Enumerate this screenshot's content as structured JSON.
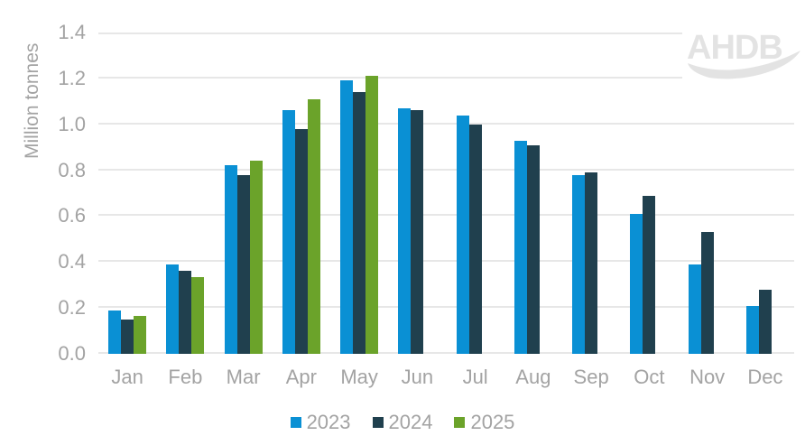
{
  "chart_data": {
    "type": "bar",
    "title": "",
    "xlabel": "",
    "ylabel": "Million tonnes",
    "categories": [
      "Jan",
      "Feb",
      "Mar",
      "Apr",
      "May",
      "Jun",
      "Jul",
      "Aug",
      "Sep",
      "Oct",
      "Nov",
      "Dec"
    ],
    "series": [
      {
        "name": "2023",
        "color": "#0a90d4",
        "values": [
          0.19,
          0.39,
          0.82,
          1.06,
          1.19,
          1.07,
          1.04,
          0.93,
          0.78,
          0.61,
          0.39,
          0.21
        ]
      },
      {
        "name": "2024",
        "color": "#20404e",
        "values": [
          0.15,
          0.36,
          0.78,
          0.98,
          1.14,
          1.06,
          1.0,
          0.91,
          0.79,
          0.69,
          0.53,
          0.28
        ]
      },
      {
        "name": "2025",
        "color": "#6ba32a",
        "values": [
          0.165,
          0.335,
          0.84,
          1.11,
          1.21,
          null,
          null,
          null,
          null,
          null,
          null,
          null
        ]
      }
    ],
    "ylim": [
      0,
      1.4
    ],
    "ytick_labels": [
      "0.0",
      "0.2",
      "0.4",
      "0.6",
      "0.8",
      "1.0",
      "1.2",
      "1.4"
    ],
    "grid": "horizontal",
    "legend_position": "bottom"
  },
  "watermark": {
    "text": "AHDB"
  },
  "colors": {
    "background": "#ffffff",
    "gridline": "#e7e7e7",
    "axis_text": "#a3a3a3",
    "watermark": "#e3e3e3"
  }
}
